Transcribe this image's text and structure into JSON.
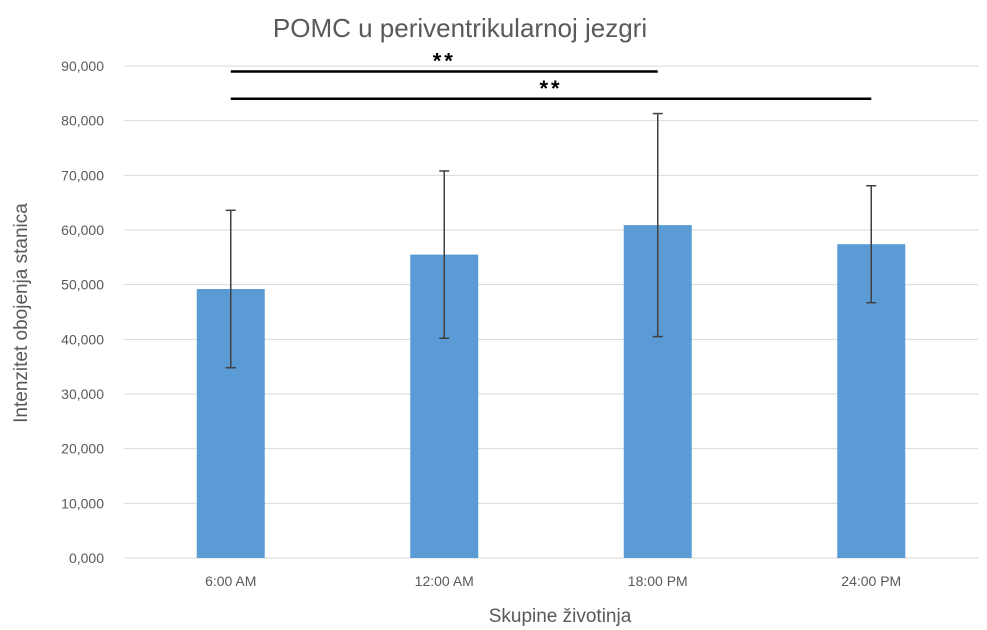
{
  "chart_data": {
    "type": "bar",
    "title": "POMC u periventrikularnoj jezgri",
    "xlabel": "Skupine životinja",
    "ylabel": "Intenzitet obojenja stanica",
    "categories": [
      "6:00 AM",
      "12:00 AM",
      "18:00 PM",
      "24:00 PM"
    ],
    "values": [
      49.2,
      55.5,
      60.9,
      57.4
    ],
    "errors": [
      14.4,
      15.3,
      20.4,
      10.7
    ],
    "ylim": [
      0,
      90
    ],
    "yticks": [
      "0,000",
      "10,000",
      "20,000",
      "30,000",
      "40,000",
      "50,000",
      "60,000",
      "70,000",
      "80,000",
      "90,000"
    ],
    "grid": true,
    "bar_color": "#5b9bd5",
    "significance": [
      {
        "label": "**",
        "from": 0,
        "to": 2,
        "y": 89
      },
      {
        "label": "**",
        "from": 0,
        "to": 3,
        "y": 84
      }
    ]
  }
}
